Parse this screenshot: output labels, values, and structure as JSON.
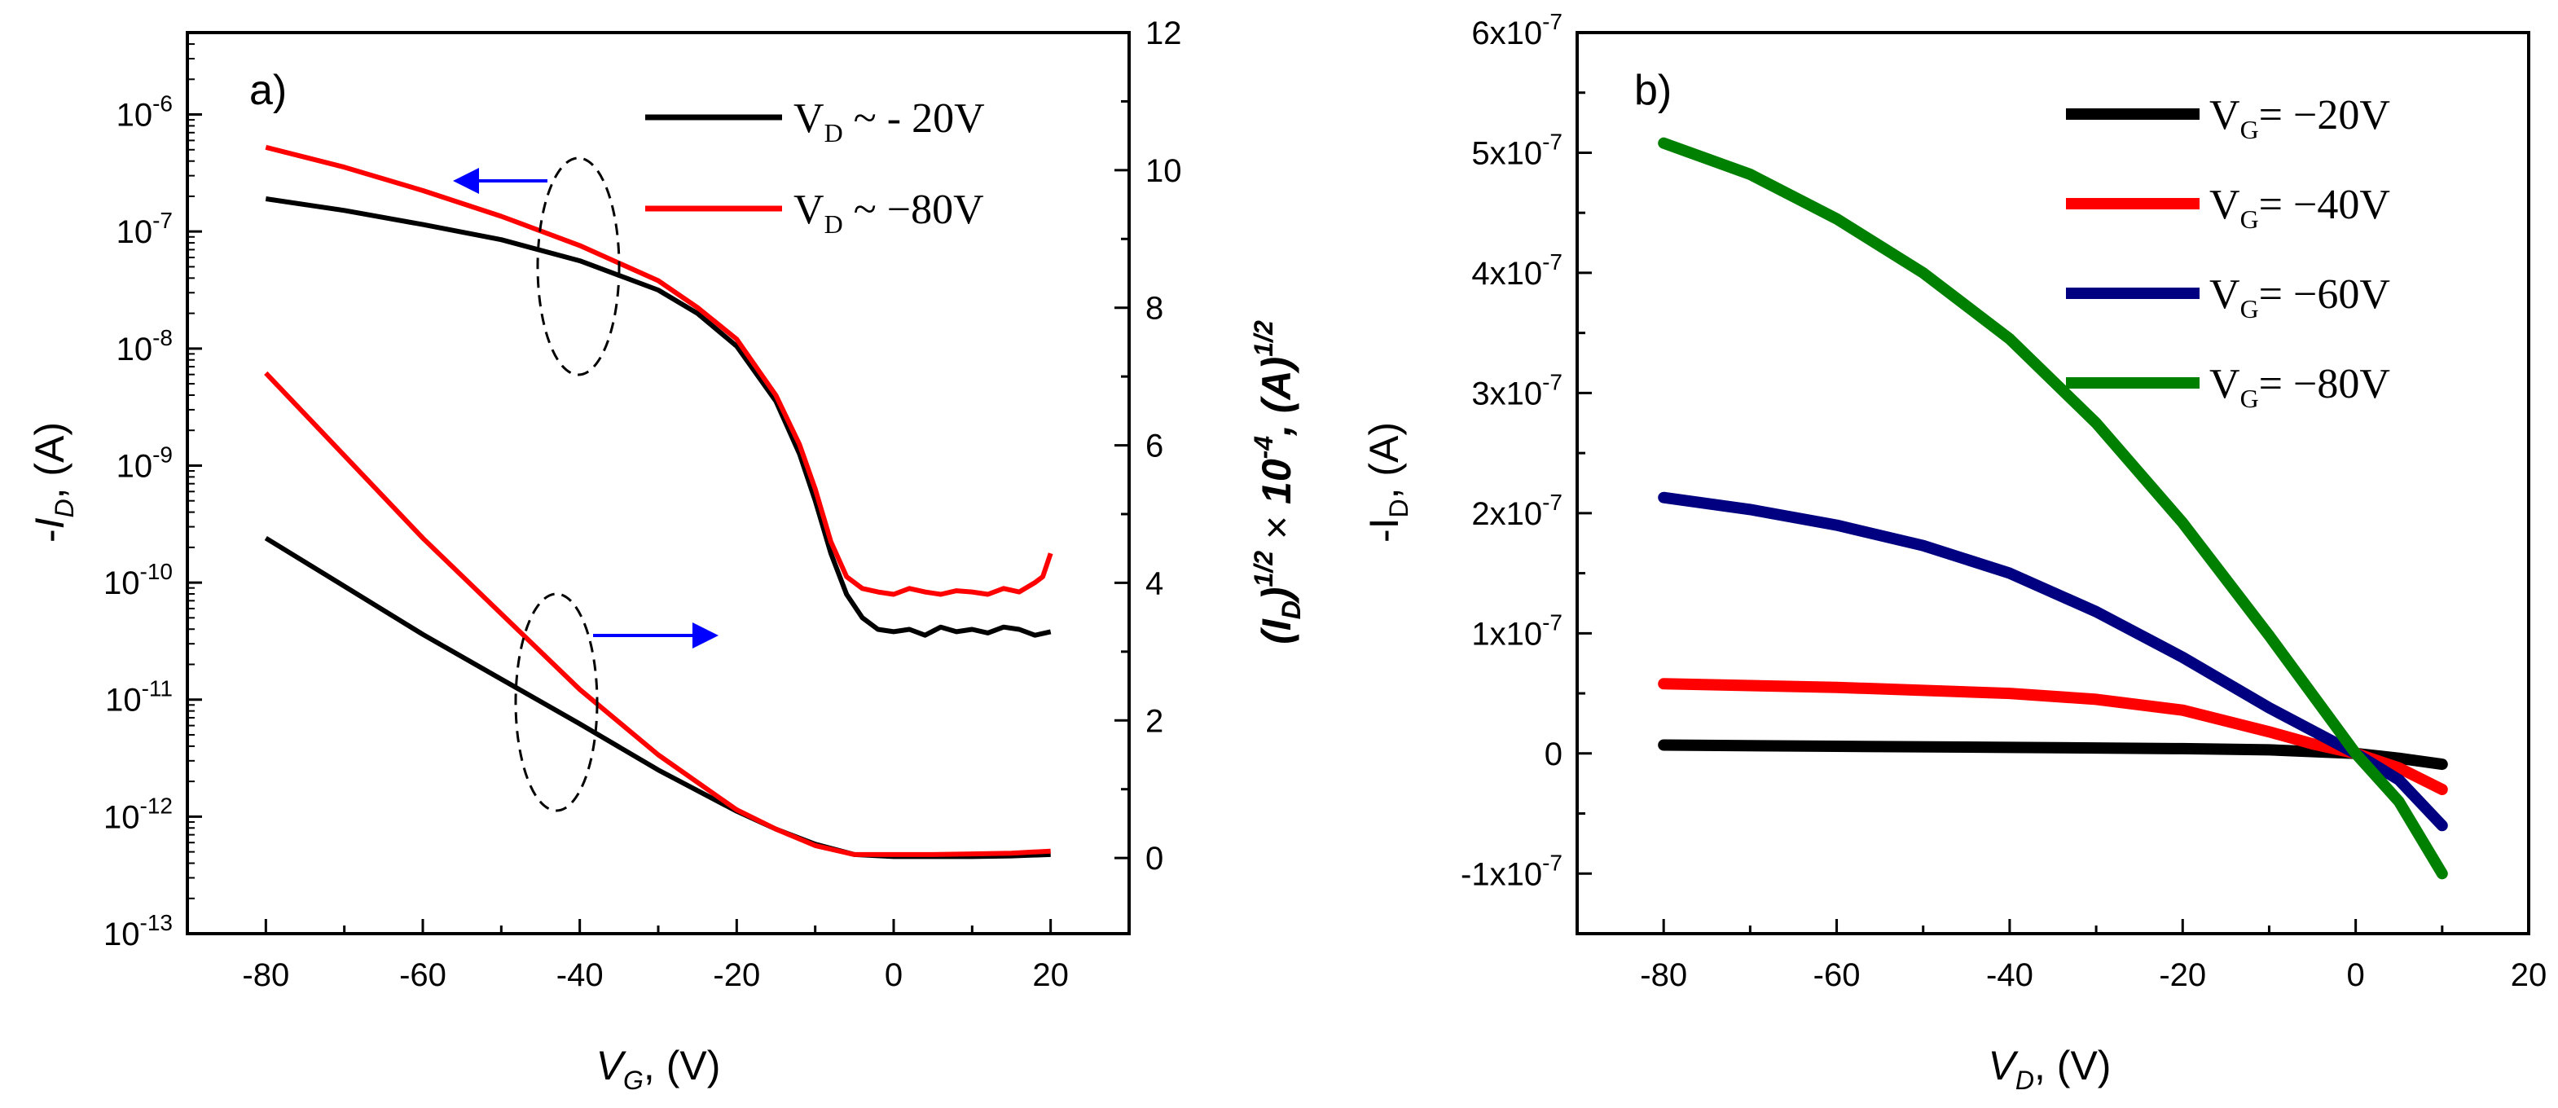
{
  "chart_data": [
    {
      "panel": "a)",
      "type": "line",
      "xlabel": {
        "var": "V",
        "sub": "G",
        "rest": ", (V)"
      },
      "ylabel_left": {
        "prefix": "-",
        "var": "I",
        "sub": "D",
        "rest": ", (A)"
      },
      "ylabel_right": {
        "open": "(",
        "var": "I",
        "sub": "D",
        "close": ")",
        "sup1": "1/2",
        "times": " × ",
        "ten": "10",
        "sup2": "-4",
        "mid": ", ",
        "unit": "(A)",
        "sup3": "1/2"
      },
      "xlim": [
        -90,
        30
      ],
      "x_ticks": [
        -80,
        -60,
        -40,
        -20,
        0,
        20
      ],
      "x_tick_labels": [
        "-80",
        "-60",
        "-40",
        "-20",
        "0",
        "20"
      ],
      "ylim_left_log10": [
        -13,
        -5.3
      ],
      "y_left_ticks": [
        {
          "base": "10",
          "exp": "-6",
          "log": -6
        },
        {
          "base": "10",
          "exp": "-7",
          "log": -7
        },
        {
          "base": "10",
          "exp": "-8",
          "log": -8
        },
        {
          "base": "10",
          "exp": "-9",
          "log": -9
        },
        {
          "base": "10",
          "exp": "-10",
          "log": -10
        },
        {
          "base": "10",
          "exp": "-11",
          "log": -11
        },
        {
          "base": "10",
          "exp": "-12",
          "log": -12
        },
        {
          "base": "10",
          "exp": "-13",
          "log": -13
        }
      ],
      "ylim_right": [
        -1.1,
        12
      ],
      "y_right_ticks": [
        0,
        2,
        4,
        6,
        8,
        10,
        12
      ],
      "y_right_tick_labels": [
        "0",
        "2",
        "4",
        "6",
        "8",
        "10",
        "12"
      ],
      "legend": [
        {
          "v": "V",
          "sub": "D",
          "text": " ~ - 20V",
          "color": "#000000"
        },
        {
          "v": "V",
          "sub": "D",
          "text": " ~ −80V",
          "color": "#ff0000"
        }
      ],
      "series": [
        {
          "name": "-ID log, VD ~ -20V",
          "axis": "left_log",
          "color": "#000000",
          "x": [
            -80,
            -70,
            -60,
            -50,
            -40,
            -30,
            -25,
            -20,
            -15,
            -12,
            -10,
            -8,
            -6,
            -4,
            -2,
            0,
            2,
            4,
            6,
            8,
            10,
            12,
            14,
            16,
            18,
            20
          ],
          "y": [
            -6.72,
            -6.82,
            -6.94,
            -7.07,
            -7.25,
            -7.5,
            -7.7,
            -7.98,
            -8.45,
            -8.9,
            -9.3,
            -9.75,
            -10.1,
            -10.3,
            -10.4,
            -10.42,
            -10.4,
            -10.45,
            -10.38,
            -10.42,
            -10.4,
            -10.43,
            -10.38,
            -10.4,
            -10.45,
            -10.42
          ]
        },
        {
          "name": "-ID log, VD ~ -80V",
          "axis": "left_log",
          "color": "#ff0000",
          "x": [
            -80,
            -70,
            -60,
            -50,
            -40,
            -30,
            -25,
            -20,
            -15,
            -12,
            -10,
            -8,
            -6,
            -4,
            -2,
            0,
            2,
            4,
            6,
            8,
            10,
            12,
            14,
            16,
            18,
            19,
            20
          ],
          "y": [
            -6.28,
            -6.45,
            -6.65,
            -6.87,
            -7.12,
            -7.42,
            -7.65,
            -7.92,
            -8.4,
            -8.82,
            -9.2,
            -9.65,
            -9.95,
            -10.05,
            -10.08,
            -10.1,
            -10.05,
            -10.08,
            -10.1,
            -10.07,
            -10.08,
            -10.1,
            -10.05,
            -10.08,
            -10.0,
            -9.95,
            -9.75
          ]
        },
        {
          "name": "sqrt(ID), VD ~ -20V",
          "axis": "right",
          "color": "#000000",
          "x": [
            -80,
            -70,
            -60,
            -50,
            -40,
            -30,
            -20,
            -15,
            -10,
            -5,
            0,
            5,
            10,
            15,
            20
          ],
          "y": [
            4.65,
            3.95,
            3.25,
            2.6,
            1.95,
            1.28,
            0.68,
            0.42,
            0.2,
            0.05,
            0.02,
            0.02,
            0.02,
            0.03,
            0.05
          ]
        },
        {
          "name": "sqrt(ID), VD ~ -80V",
          "axis": "right",
          "color": "#ff0000",
          "x": [
            -80,
            -70,
            -60,
            -50,
            -40,
            -30,
            -20,
            -15,
            -10,
            -5,
            0,
            5,
            10,
            15,
            20
          ],
          "y": [
            7.05,
            5.85,
            4.65,
            3.55,
            2.45,
            1.5,
            0.7,
            0.42,
            0.18,
            0.05,
            0.05,
            0.05,
            0.06,
            0.07,
            0.1
          ]
        }
      ],
      "annotations": [
        {
          "type": "arrow",
          "points_to": "left axis",
          "color": "#0000ff"
        },
        {
          "type": "arrow",
          "points_to": "right axis",
          "color": "#0000ff"
        },
        {
          "type": "dashed-ellipse",
          "count": 2
        }
      ]
    },
    {
      "panel": "b)",
      "type": "line",
      "xlabel": {
        "var": "V",
        "sub": "D",
        "rest": ", (V)"
      },
      "ylabel": {
        "prefix": "-I",
        "sub": "D",
        "rest": ", (A)"
      },
      "xlim": [
        -90,
        20
      ],
      "x_ticks": [
        -80,
        -60,
        -40,
        -20,
        0,
        20
      ],
      "x_tick_labels": [
        "-80",
        "-60",
        "-40",
        "-20",
        "0",
        "20"
      ],
      "ylim": [
        -1.5e-07,
        6e-07
      ],
      "y_ticks": [
        {
          "value": -1e-07,
          "mant": "-1x10",
          "exp": "-7"
        },
        {
          "value": 0,
          "mant": "0",
          "exp": ""
        },
        {
          "value": 1e-07,
          "mant": "1x10",
          "exp": "-7"
        },
        {
          "value": 2e-07,
          "mant": "2x10",
          "exp": "-7"
        },
        {
          "value": 3e-07,
          "mant": "3x10",
          "exp": "-7"
        },
        {
          "value": 4e-07,
          "mant": "4x10",
          "exp": "-7"
        },
        {
          "value": 5e-07,
          "mant": "5x10",
          "exp": "-7"
        },
        {
          "value": 6e-07,
          "mant": "6x10",
          "exp": "-7"
        }
      ],
      "legend": [
        {
          "v": "V",
          "sub": "G",
          "text": "= −20V",
          "color": "#000000"
        },
        {
          "v": "V",
          "sub": "G",
          "text": "= −40V",
          "color": "#ff0000"
        },
        {
          "v": "V",
          "sub": "G",
          "text": "= −60V",
          "color": "#000080"
        },
        {
          "v": "V",
          "sub": "G",
          "text": "= −80V",
          "color": "#008000"
        }
      ],
      "series": [
        {
          "name": "VG = -20V",
          "color": "#000000",
          "x": [
            -80,
            -60,
            -40,
            -20,
            -10,
            0,
            5,
            10
          ],
          "y": [
            7e-09,
            6e-09,
            5e-09,
            4e-09,
            3e-09,
            0,
            -4e-09,
            -9e-09
          ]
        },
        {
          "name": "VG = -40V",
          "color": "#ff0000",
          "x": [
            -80,
            -60,
            -40,
            -30,
            -20,
            -10,
            -5,
            0,
            5,
            10
          ],
          "y": [
            5.8e-08,
            5.5e-08,
            5e-08,
            4.5e-08,
            3.6e-08,
            1.8e-08,
            8e-09,
            0,
            -1.2e-08,
            -3e-08
          ]
        },
        {
          "name": "VG = -60V",
          "color": "#000080",
          "x": [
            -80,
            -70,
            -60,
            -50,
            -40,
            -30,
            -20,
            -10,
            0,
            5,
            10
          ],
          "y": [
            2.13e-07,
            2.03e-07,
            1.9e-07,
            1.73e-07,
            1.5e-07,
            1.18e-07,
            8e-08,
            3.8e-08,
            0,
            -2.2e-08,
            -6e-08
          ]
        },
        {
          "name": "VG = -80V",
          "color": "#008000",
          "x": [
            -80,
            -70,
            -60,
            -50,
            -40,
            -30,
            -20,
            -10,
            0,
            5,
            10
          ],
          "y": [
            5.08e-07,
            4.82e-07,
            4.45e-07,
            4e-07,
            3.45e-07,
            2.75e-07,
            1.92e-07,
            9.8e-08,
            0,
            -4e-08,
            -1e-07
          ]
        }
      ]
    }
  ]
}
